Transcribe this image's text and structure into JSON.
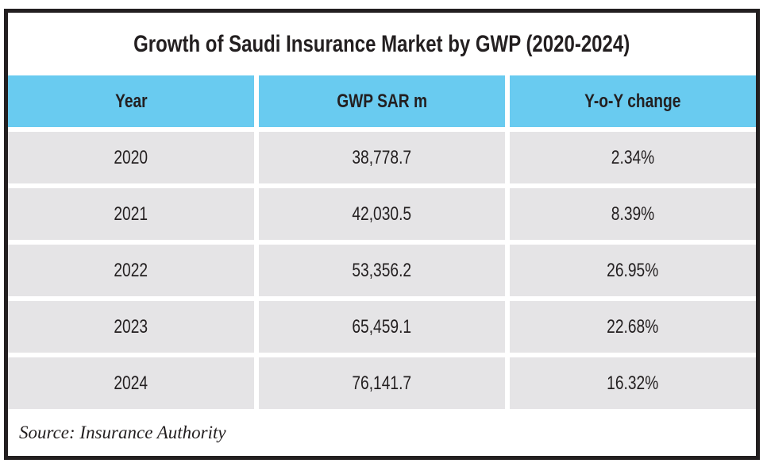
{
  "title": "Growth of Saudi Insurance Market by GWP (2020-2024)",
  "source_note": "Source: Insurance Authority",
  "table": {
    "headers": [
      "Year",
      "GWP SAR m",
      "Y-o-Y change"
    ],
    "rows": [
      [
        "2020",
        "38,778.7",
        "2.34%"
      ],
      [
        "2021",
        "42,030.5",
        "8.39%"
      ],
      [
        "2022",
        "53,356.2",
        "26.95%"
      ],
      [
        "2023",
        "65,459.1",
        "22.68%"
      ],
      [
        "2024",
        "76,141.7",
        "16.32%"
      ]
    ]
  },
  "chart_data": {
    "type": "table",
    "title": "Growth of Saudi Insurance Market by GWP (2020-2024)",
    "columns": [
      "Year",
      "GWP SAR m",
      "Y-o-Y change"
    ],
    "years": [
      2020,
      2021,
      2022,
      2023,
      2024
    ],
    "gwp_sar_m": [
      38778.7,
      42030.5,
      53356.2,
      65459.1,
      76141.7
    ],
    "yoy_change_pct": [
      2.34,
      8.39,
      26.95,
      22.68,
      16.32
    ],
    "source": "Insurance Authority"
  },
  "colors": {
    "header_bg": "#69cbf0",
    "row_bg": "#e5e4e6",
    "frame_border": "#231f20",
    "text": "#231f20"
  }
}
